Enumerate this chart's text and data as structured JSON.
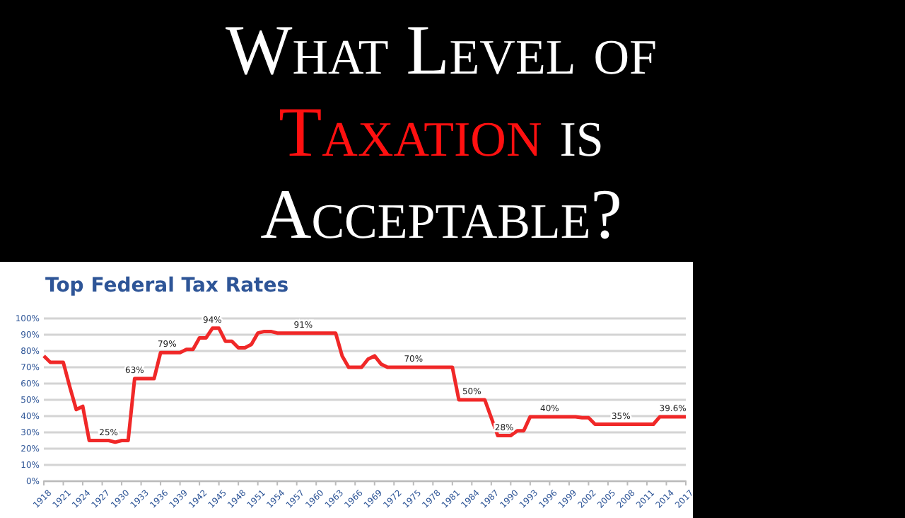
{
  "chart_data": {
    "type": "line",
    "title": "What Level of Taxation is Acceptable?",
    "subtitle": "Top Federal Tax Rates",
    "x": [
      1918,
      1919,
      1920,
      1921,
      1922,
      1923,
      1924,
      1925,
      1926,
      1927,
      1928,
      1929,
      1930,
      1931,
      1932,
      1933,
      1934,
      1935,
      1936,
      1937,
      1938,
      1939,
      1940,
      1941,
      1942,
      1943,
      1944,
      1945,
      1946,
      1947,
      1948,
      1949,
      1950,
      1951,
      1952,
      1953,
      1954,
      1955,
      1956,
      1957,
      1958,
      1959,
      1960,
      1961,
      1962,
      1963,
      1964,
      1965,
      1966,
      1967,
      1968,
      1969,
      1970,
      1971,
      1972,
      1973,
      1974,
      1975,
      1976,
      1977,
      1978,
      1979,
      1980,
      1981,
      1982,
      1983,
      1984,
      1985,
      1986,
      1987,
      1988,
      1989,
      1990,
      1991,
      1992,
      1993,
      1994,
      1995,
      1996,
      1997,
      1998,
      1999,
      2000,
      2001,
      2002,
      2003,
      2004,
      2005,
      2006,
      2007,
      2008,
      2009,
      2010,
      2011,
      2012,
      2013,
      2014,
      2015,
      2016,
      2017
    ],
    "series": [
      {
        "color": "#f02828",
        "values": [
          77,
          73,
          73,
          73,
          58,
          44,
          46,
          25,
          25,
          25,
          25,
          24,
          25,
          25,
          63,
          63,
          63,
          63,
          79,
          79,
          79,
          79,
          81,
          81,
          88,
          88,
          94,
          94,
          86,
          86,
          82,
          82,
          84,
          91,
          92,
          92,
          91,
          91,
          91,
          91,
          91,
          91,
          91,
          91,
          91,
          91,
          77,
          70,
          70,
          70,
          75,
          77,
          72,
          70,
          70,
          70,
          70,
          70,
          70,
          70,
          70,
          70,
          70,
          70,
          50,
          50,
          50,
          50,
          50,
          39,
          28,
          28,
          28,
          31,
          31,
          39.6,
          39.6,
          39.6,
          39.6,
          39.6,
          39.6,
          39.6,
          39.6,
          39,
          39,
          35,
          35,
          35,
          35,
          35,
          35,
          35,
          35,
          35,
          35,
          39.6,
          39.6,
          39.6,
          39.6,
          39.6
        ]
      }
    ],
    "xlim": [
      1918,
      2017
    ],
    "xticks": [
      1918,
      1921,
      1924,
      1927,
      1930,
      1933,
      1936,
      1939,
      1942,
      1945,
      1948,
      1951,
      1954,
      1957,
      1960,
      1963,
      1966,
      1969,
      1972,
      1975,
      1978,
      1981,
      1984,
      1987,
      1990,
      1993,
      1996,
      1999,
      2002,
      2005,
      2008,
      2011,
      2014,
      2017
    ],
    "ylim": [
      0,
      100
    ],
    "yticks": [
      {
        "value": 0,
        "label": "0%"
      },
      {
        "value": 10,
        "label": "10%"
      },
      {
        "value": 20,
        "label": "20%"
      },
      {
        "value": 30,
        "label": "30%"
      },
      {
        "value": 40,
        "label": "40%"
      },
      {
        "value": 50,
        "label": "50%"
      },
      {
        "value": 60,
        "label": "60%"
      },
      {
        "value": 70,
        "label": "70%"
      },
      {
        "value": 80,
        "label": "80%"
      },
      {
        "value": 90,
        "label": "90%"
      },
      {
        "value": 100,
        "label": "100%"
      }
    ],
    "grid": "y",
    "line_style": "solid",
    "marker": "none",
    "annotations": [
      {
        "text": "25%",
        "x": 1928,
        "y": 25
      },
      {
        "text": "63%",
        "x": 1932,
        "y": 63
      },
      {
        "text": "79%",
        "x": 1937,
        "y": 79
      },
      {
        "text": "94%",
        "x": 1944,
        "y": 94
      },
      {
        "text": "91%",
        "x": 1958,
        "y": 91
      },
      {
        "text": "70%",
        "x": 1975,
        "y": 70
      },
      {
        "text": "50%",
        "x": 1984,
        "y": 50
      },
      {
        "text": "28%",
        "x": 1989,
        "y": 28
      },
      {
        "text": "40%",
        "x": 1996,
        "y": 39.6
      },
      {
        "text": "35%",
        "x": 2007,
        "y": 35
      },
      {
        "text": "39.6%",
        "x": 2015,
        "y": 39.6
      }
    ]
  }
}
